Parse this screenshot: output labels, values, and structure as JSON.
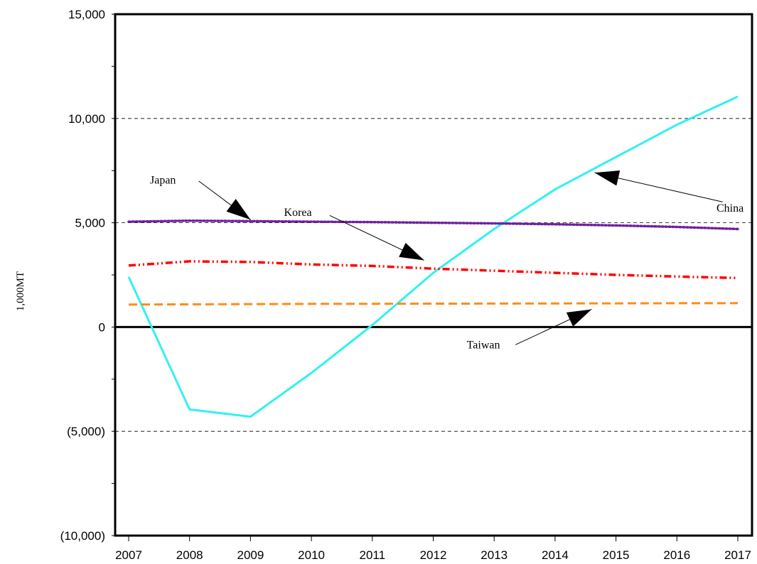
{
  "chart_data": {
    "type": "line",
    "title": "",
    "xlabel": "",
    "ylabel": "1,000MT",
    "x": [
      2007,
      2008,
      2009,
      2010,
      2011,
      2012,
      2013,
      2014,
      2015,
      2016,
      2017
    ],
    "x_tick_labels": [
      "2007",
      "2008",
      "2009",
      "2010",
      "2011",
      "2012",
      "2013",
      "2014",
      "2015",
      "2016",
      "2017"
    ],
    "ylim": [
      -10000,
      15000
    ],
    "y_ticks": [
      -10000,
      -5000,
      0,
      5000,
      10000,
      15000
    ],
    "y_tick_labels": [
      "(10,000)",
      "(5,000)",
      "0",
      "5,000",
      "10,000",
      "15,000"
    ],
    "grid": "horizontal dashed at major ticks",
    "legend": "none (series labeled by annotation arrows)",
    "series": [
      {
        "name": "China",
        "color": "#33f0f0",
        "style": "solid",
        "values": [
          2400,
          -3950,
          -4300,
          -2200,
          100,
          2600,
          4700,
          6600,
          8150,
          9700,
          11050
        ]
      },
      {
        "name": "Japan",
        "color": "#7020a0",
        "style": "dotted",
        "values": [
          5050,
          5100,
          5080,
          5050,
          5030,
          5000,
          4970,
          4930,
          4870,
          4800,
          4700
        ]
      },
      {
        "name": "Korea",
        "color": "#ff0000",
        "style": "dash-dot-dot",
        "values": [
          2950,
          3150,
          3120,
          3000,
          2930,
          2800,
          2700,
          2600,
          2500,
          2420,
          2350
        ]
      },
      {
        "name": "Taiwan",
        "color": "#ff8c1a",
        "style": "dashed",
        "values": [
          1080,
          1090,
          1100,
          1110,
          1115,
          1120,
          1125,
          1130,
          1135,
          1140,
          1145
        ]
      }
    ],
    "annotations": [
      {
        "text": "Japan",
        "series": "Japan",
        "label_pos": [
          2007.35,
          7050
        ],
        "arrow_from": [
          2008.15,
          7000
        ],
        "arrow_to": [
          2009.0,
          5150
        ]
      },
      {
        "text": "Korea",
        "series": "Korea",
        "label_pos": [
          2009.55,
          5500
        ],
        "arrow_from": [
          2010.3,
          5350
        ],
        "arrow_to": [
          2011.85,
          3200
        ]
      },
      {
        "text": "China",
        "series": "China",
        "label_pos": [
          2016.65,
          5700
        ],
        "arrow_from": [
          2016.75,
          6000
        ],
        "arrow_to": [
          2014.65,
          7400
        ]
      },
      {
        "text": "Taiwan",
        "series": "Taiwan",
        "label_pos": [
          2012.55,
          -850
        ],
        "arrow_from": [
          2013.35,
          -850
        ],
        "arrow_to": [
          2014.6,
          850
        ]
      }
    ]
  }
}
